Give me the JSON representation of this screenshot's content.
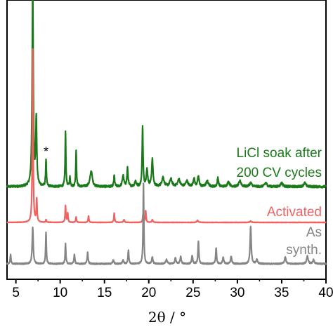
{
  "chart_data": {
    "type": "line",
    "title": "",
    "xlabel": "2θ / °",
    "ylabel": "",
    "xlim": [
      4,
      40
    ],
    "x_ticks": [
      5,
      10,
      15,
      20,
      25,
      30,
      35,
      40
    ],
    "y_ticks_shown": false,
    "grid": false,
    "annotations": [
      {
        "text": "*",
        "x": 8.4
      }
    ],
    "series": [
      {
        "name": "LiCl soak after 200 CV cycles",
        "label_lines": [
          "LiCl soak after",
          "200 CV cycles"
        ],
        "color": "#1a7a1a",
        "baseline": 0,
        "peaks": [
          [
            6.9,
            2.2,
            0.15
          ],
          [
            7.3,
            0.72,
            0.14
          ],
          [
            8.4,
            0.3,
            0.1
          ],
          [
            10.6,
            0.6,
            0.1
          ],
          [
            11.1,
            0.1,
            0.12
          ],
          [
            11.8,
            0.4,
            0.1
          ],
          [
            13.5,
            0.17,
            0.3
          ],
          [
            16.1,
            0.12,
            0.12
          ],
          [
            17.1,
            0.12,
            0.2
          ],
          [
            17.6,
            0.2,
            0.15
          ],
          [
            18.5,
            0.06,
            0.2
          ],
          [
            19.3,
            0.66,
            0.12
          ],
          [
            19.8,
            0.18,
            0.2
          ],
          [
            20.4,
            0.3,
            0.18
          ],
          [
            21.6,
            0.1,
            0.3
          ],
          [
            22.5,
            0.08,
            0.3
          ],
          [
            23.4,
            0.08,
            0.3
          ],
          [
            24.3,
            0.06,
            0.3
          ],
          [
            25.1,
            0.09,
            0.2
          ],
          [
            25.6,
            0.11,
            0.2
          ],
          [
            26.6,
            0.06,
            0.3
          ],
          [
            27.8,
            0.1,
            0.15
          ],
          [
            29.0,
            0.05,
            0.3
          ],
          [
            30.3,
            0.06,
            0.3
          ],
          [
            31.5,
            0.04,
            0.3
          ],
          [
            33.2,
            0.04,
            0.3
          ],
          [
            35.0,
            0.04,
            0.3
          ],
          [
            37.6,
            0.04,
            0.3
          ]
        ]
      },
      {
        "name": "Activated",
        "label_lines": [
          "Activated"
        ],
        "color": "#f06262",
        "baseline": 0,
        "peaks": [
          [
            6.9,
            2.6,
            0.1
          ],
          [
            7.35,
            0.35,
            0.1
          ],
          [
            8.4,
            0.04,
            0.1
          ],
          [
            10.6,
            0.25,
            0.1
          ],
          [
            10.85,
            0.14,
            0.1
          ],
          [
            11.8,
            0.08,
            0.1
          ],
          [
            13.2,
            0.1,
            0.1
          ],
          [
            16.1,
            0.14,
            0.1
          ],
          [
            17.2,
            0.04,
            0.15
          ],
          [
            19.35,
            0.12,
            0.1
          ],
          [
            19.65,
            0.18,
            0.1
          ],
          [
            20.4,
            0.04,
            0.15
          ],
          [
            25.5,
            0.03,
            0.2
          ],
          [
            31.5,
            0.02,
            0.2
          ]
        ]
      },
      {
        "name": "As synth.",
        "label_lines": [
          "As",
          "synth."
        ],
        "color": "#858585",
        "baseline": 0,
        "peaks": [
          [
            4.4,
            0.14,
            0.1
          ],
          [
            6.9,
            0.55,
            0.14
          ],
          [
            8.4,
            0.47,
            0.1
          ],
          [
            10.6,
            0.3,
            0.1
          ],
          [
            11.6,
            0.14,
            0.12
          ],
          [
            13.1,
            0.17,
            0.12
          ],
          [
            16.0,
            0.06,
            0.15
          ],
          [
            17.1,
            0.06,
            0.15
          ],
          [
            17.7,
            0.2,
            0.12
          ],
          [
            19.4,
            1.2,
            0.1
          ],
          [
            20.4,
            0.1,
            0.15
          ],
          [
            22.0,
            0.06,
            0.2
          ],
          [
            23.0,
            0.09,
            0.15
          ],
          [
            23.6,
            0.11,
            0.15
          ],
          [
            24.9,
            0.12,
            0.15
          ],
          [
            25.6,
            0.34,
            0.12
          ],
          [
            27.6,
            0.24,
            0.12
          ],
          [
            28.4,
            0.1,
            0.15
          ],
          [
            29.3,
            0.11,
            0.15
          ],
          [
            31.5,
            0.55,
            0.15
          ],
          [
            32.2,
            0.06,
            0.2
          ],
          [
            35.4,
            0.1,
            0.2
          ],
          [
            37.9,
            0.12,
            0.2
          ],
          [
            38.6,
            0.06,
            0.2
          ]
        ]
      }
    ]
  }
}
